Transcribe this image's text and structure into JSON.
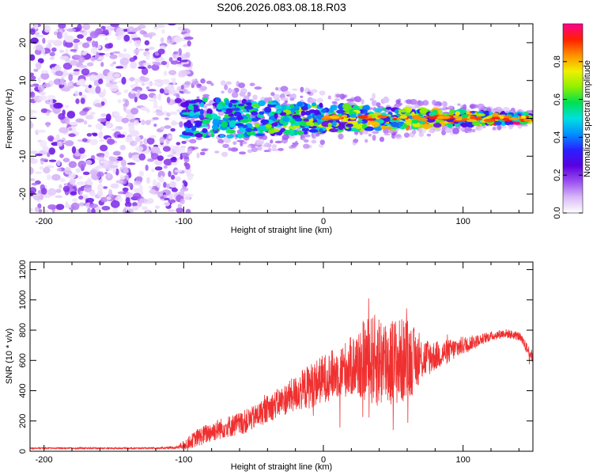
{
  "chart_data": [
    {
      "type": "heatmap",
      "title": "S206.2026.083.08.18.R03",
      "xlabel": "Height of straight line (km)",
      "ylabel": "Frequency (Hz)",
      "xlim": [
        -210,
        150
      ],
      "ylim": [
        -25,
        25
      ],
      "xticks": [
        -200,
        -100,
        0,
        100
      ],
      "yticks": [
        -20,
        -10,
        0,
        10,
        20
      ],
      "colorbar": {
        "label": "Normalized spectral amplitude",
        "range": [
          0.0,
          1.0
        ],
        "ticks": [
          0.0,
          0.2,
          0.4,
          0.6,
          0.8
        ],
        "tick_labels": [
          "0.0",
          "0.2",
          "0.4",
          "0.6",
          "0.8"
        ],
        "colormap": [
          "#ffffff",
          "#d8b8f8",
          "#9a4ef0",
          "#5a00e0",
          "#2a20ff",
          "#0090ff",
          "#00e0e0",
          "#00e050",
          "#90f000",
          "#f0f000",
          "#ff9000",
          "#ff2000",
          "#ff0090"
        ]
      },
      "features": {
        "noise_region_km": [
          -210,
          -100
        ],
        "signal_region_km": [
          -100,
          150
        ],
        "signal_center_hz": 0,
        "signal_spread_hz_at_start": 6,
        "signal_spread_hz_at_end": 1
      }
    },
    {
      "type": "line",
      "xlabel": "Height of straight line (km)",
      "ylabel": "SNR (10 * v/v)",
      "xlim": [
        -210,
        150
      ],
      "ylim": [
        0,
        1250
      ],
      "xticks": [
        -200,
        -100,
        0,
        100
      ],
      "yticks": [
        0,
        200,
        400,
        600,
        800,
        1000,
        1200
      ],
      "series": [
        {
          "name": "SNR",
          "color": "#f03030",
          "x": [
            -210,
            -180,
            -150,
            -120,
            -105,
            -100,
            -90,
            -80,
            -70,
            -60,
            -50,
            -40,
            -30,
            -20,
            -10,
            0,
            10,
            20,
            30,
            40,
            50,
            60,
            70,
            80,
            90,
            100,
            110,
            120,
            130,
            140,
            150
          ],
          "y": [
            20,
            20,
            20,
            20,
            25,
            40,
            90,
            130,
            160,
            180,
            220,
            280,
            330,
            380,
            430,
            480,
            520,
            560,
            600,
            600,
            590,
            600,
            610,
            630,
            660,
            700,
            730,
            760,
            780,
            760,
            620
          ],
          "noise": [
            5,
            5,
            5,
            5,
            10,
            30,
            60,
            70,
            70,
            80,
            80,
            90,
            100,
            120,
            150,
            160,
            170,
            200,
            280,
            320,
            300,
            280,
            150,
            100,
            80,
            60,
            40,
            30,
            30,
            30,
            40
          ]
        }
      ]
    }
  ]
}
